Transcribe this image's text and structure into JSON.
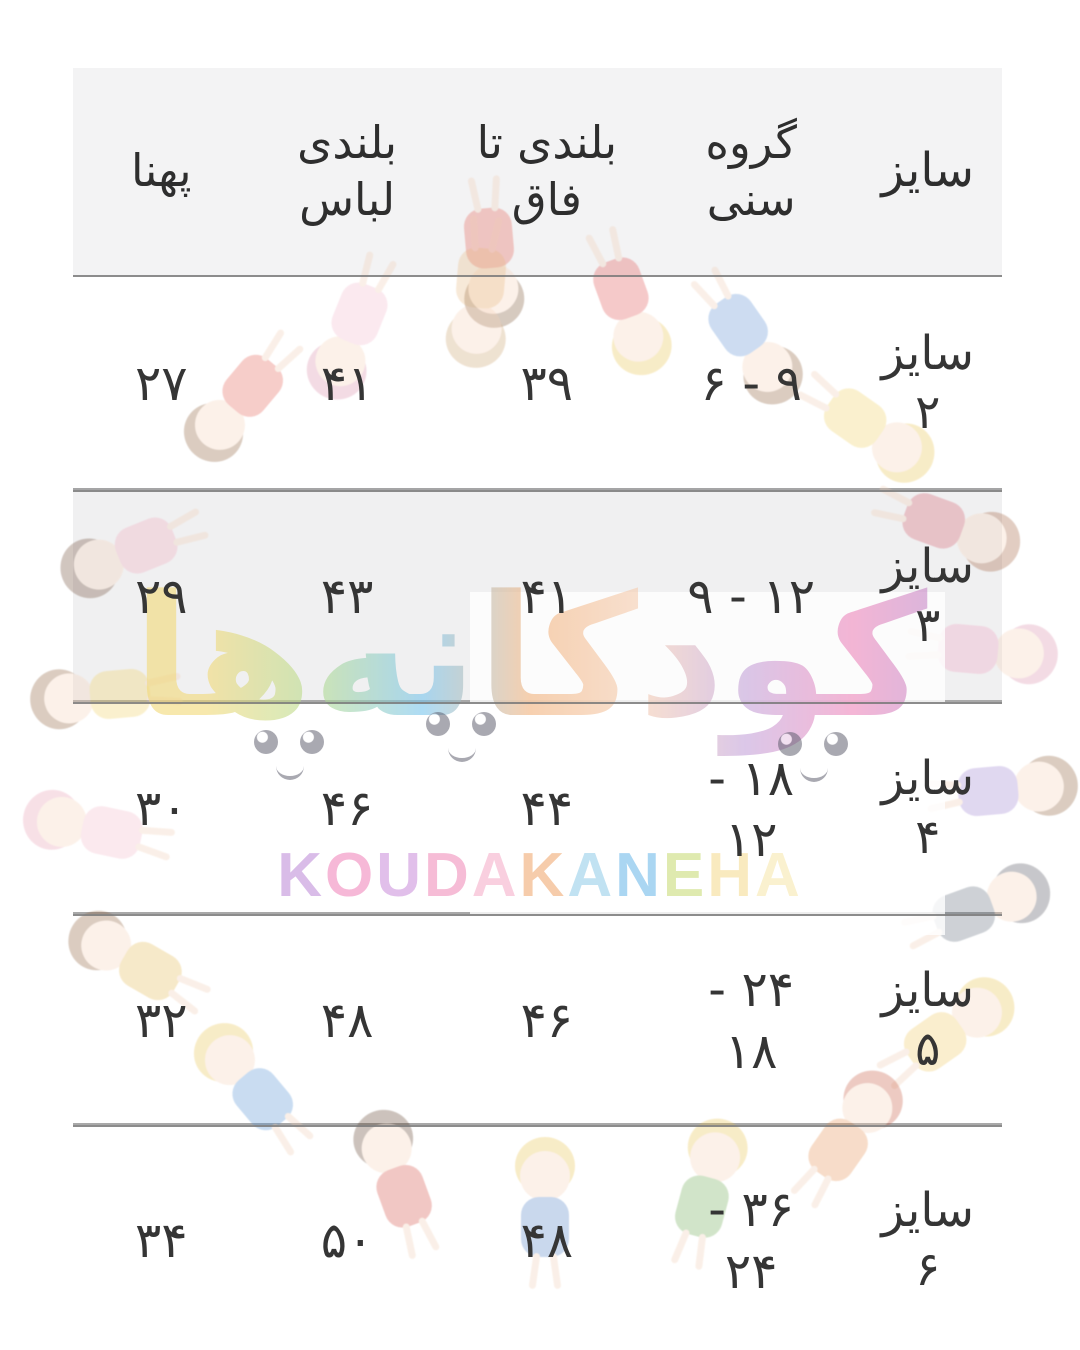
{
  "table": {
    "columns": [
      {
        "id": "size",
        "label": "سایز"
      },
      {
        "id": "age",
        "label": "گروه\nسنی"
      },
      {
        "id": "crotch",
        "label": "بلندی تا\nفاق"
      },
      {
        "id": "length",
        "label": "بلندی\nلباس"
      },
      {
        "id": "width",
        "label": "پهنا"
      }
    ],
    "rows": [
      {
        "size": "سایز\n۲",
        "age": "۶ - ۹",
        "crotch": "۳۹",
        "length": "۴۱",
        "width": "۲۷"
      },
      {
        "size": "سایز\n۳",
        "age": "۹ - ۱۲",
        "crotch": "۴۱",
        "length": "۴۳",
        "width": "۲۹"
      },
      {
        "size": "سایز\n۴",
        "age": "- ۱۸\n۱۲",
        "crotch": "۴۴",
        "length": "۴۶",
        "width": "۳۰"
      },
      {
        "size": "سایز\n۵",
        "age": "- ۲۴\n۱۸",
        "crotch": "۴۶",
        "length": "۴۸",
        "width": "۳۲"
      },
      {
        "size": "سایز\n۶",
        "age": "- ۳۶\n۲۴",
        "crotch": "۴۸",
        "length": "۵۰",
        "width": "۳۴"
      }
    ]
  },
  "chart_data": {
    "type": "table",
    "columns": [
      "سایز",
      "گروه سنی",
      "بلندی تا فاق",
      "بلندی لباس",
      "پهنا"
    ],
    "rows": [
      [
        "سایز ۲",
        "6 - 9",
        39,
        41,
        27
      ],
      [
        "سایز ۳",
        "9 - 12",
        41,
        43,
        29
      ],
      [
        "سایز ۴",
        "12 - 18",
        44,
        46,
        30
      ],
      [
        "سایز ۵",
        "18 - 24",
        46,
        48,
        32
      ],
      [
        "سایز ۶",
        "24 - 36",
        48,
        50,
        34
      ]
    ]
  },
  "watermark": {
    "brand_fa": "کودکانه‌ها",
    "brand_en": "KOUDAKANEHA",
    "letter_colors": [
      "#bb86d7",
      "#f07fb7",
      "#c98bd9",
      "#ef86b5",
      "#f5a9c6",
      "#f0a468",
      "#8fcbe8",
      "#66b5e8",
      "#c6d96f",
      "#f5d98b",
      "#f7e6a8"
    ],
    "fa_gradient": [
      "#f2d977",
      "#f2d977",
      "#b5dc8e",
      "#79c5ee",
      "#f2b27c",
      "#f6cdb0",
      "#c4a3da",
      "#ee86bb",
      "#b788cc"
    ]
  },
  "colors": {
    "header_band": "#f3f3f4",
    "stripe_band": "#f0f0f1",
    "row_line": "#8c8c8c",
    "text": "#353535"
  }
}
